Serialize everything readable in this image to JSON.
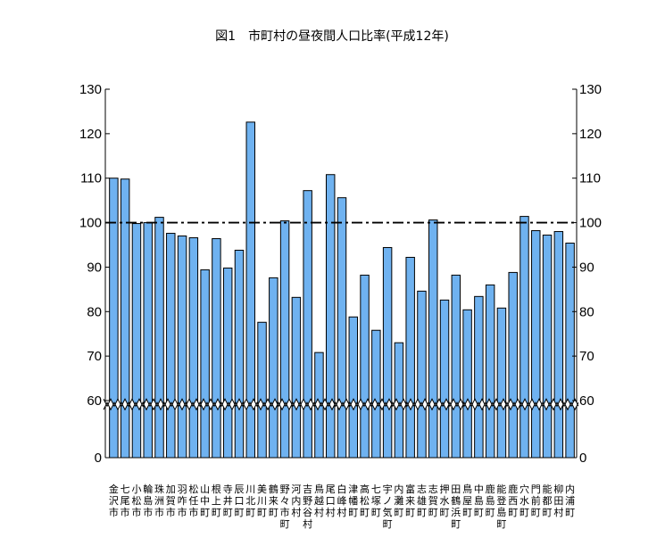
{
  "chart_data": {
    "type": "bar",
    "title": "図1　市町村の昼夜間人口比率(平成12年)",
    "categories": [
      "金沢市",
      "七尾市",
      "小松市",
      "輪島市",
      "珠洲市",
      "加賀市",
      "羽咋市",
      "松任市",
      "山中町",
      "根上町",
      "寺井町",
      "辰口町",
      "川北町",
      "美川町",
      "鶴来町",
      "野々市町",
      "河内村",
      "吉野谷村",
      "鳥越村",
      "尾口村",
      "白峰村",
      "津幡町",
      "高松町",
      "七塚町",
      "宇ノ気町",
      "内灘町",
      "富来町",
      "志雄町",
      "志賀町",
      "押水町",
      "田鶴浜町",
      "鳥屋町",
      "中島町",
      "鹿島町",
      "能登島町",
      "鹿西町",
      "穴水町",
      "門前町",
      "能都町",
      "柳田村",
      "内浦町"
    ],
    "values": [
      110,
      109.8,
      99.8,
      100,
      101.2,
      97.6,
      97,
      96.6,
      89.4,
      96.4,
      89.8,
      93.8,
      122.6,
      77.6,
      87.6,
      100.4,
      83.2,
      107.2,
      70.8,
      110.8,
      105.6,
      78.8,
      88.2,
      75.8,
      94.4,
      73,
      92.2,
      84.6,
      100.6,
      82.6,
      88.2,
      80.4,
      83.4,
      86,
      80.8,
      88.8,
      101.4,
      98.2,
      97.2,
      98,
      95.4
    ],
    "reference_line": 100,
    "y_ticks": [
      0,
      60,
      70,
      80,
      90,
      100,
      110,
      120,
      130
    ],
    "ylim": [
      0,
      130
    ],
    "axis_break": "between 0 and 60",
    "colors": {
      "bar_fill": "#6fb2f0",
      "bar_stroke": "#000000",
      "reference_line": "#000000"
    }
  }
}
